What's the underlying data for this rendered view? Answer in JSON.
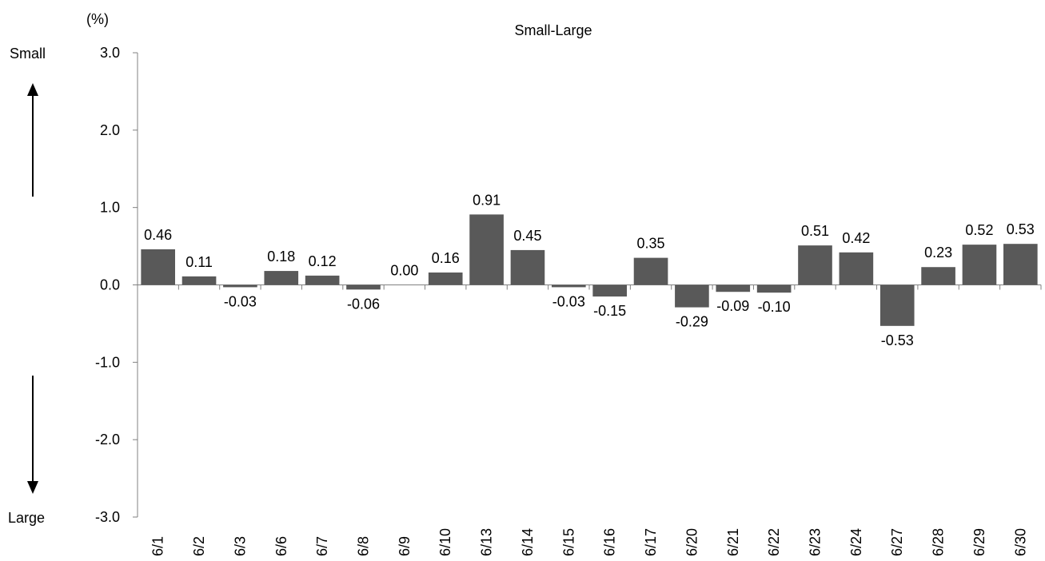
{
  "chart_data": {
    "type": "bar",
    "title": "Small-Large",
    "unit_label": "(%)",
    "top_annotation": "Small",
    "bottom_annotation": "Large",
    "categories": [
      "6/1",
      "6/2",
      "6/3",
      "6/6",
      "6/7",
      "6/8",
      "6/9",
      "6/10",
      "6/13",
      "6/14",
      "6/15",
      "6/16",
      "6/17",
      "6/20",
      "6/21",
      "6/22",
      "6/23",
      "6/24",
      "6/27",
      "6/28",
      "6/29",
      "6/30"
    ],
    "values": [
      0.46,
      0.11,
      -0.03,
      0.18,
      0.12,
      -0.06,
      0.0,
      0.16,
      0.91,
      0.45,
      -0.03,
      -0.15,
      0.35,
      -0.29,
      -0.09,
      -0.1,
      0.51,
      0.42,
      -0.53,
      0.23,
      0.52,
      0.53
    ],
    "value_labels": [
      "0.46",
      "0.11",
      "-0.03",
      "0.18",
      "0.12",
      "-0.06",
      "0.00",
      "0.16",
      "0.91",
      "0.45",
      "-0.03",
      "-0.15",
      "0.35",
      "-0.29",
      "-0.09",
      "-0.10",
      "0.51",
      "0.42",
      "-0.53",
      "0.23",
      "0.52",
      "0.53"
    ],
    "yticks": [
      "3.0",
      "2.0",
      "1.0",
      "0.0",
      "-1.0",
      "-2.0",
      "-3.0"
    ],
    "ylim": [
      -3,
      3
    ],
    "grid": false,
    "legend": "none",
    "bar_color": "#595959"
  }
}
